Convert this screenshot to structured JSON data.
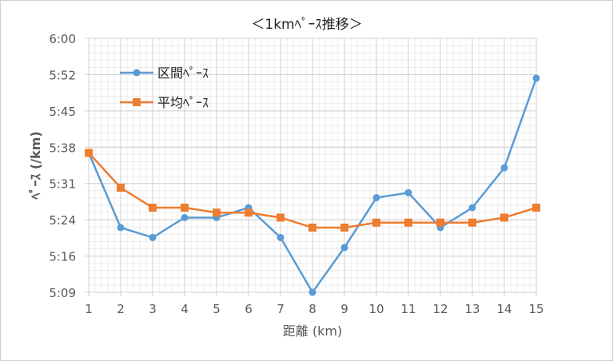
{
  "chart_data": {
    "type": "line",
    "title": "＜1kmﾍﾟｰｽ推移＞",
    "xlabel": "距離 (km)",
    "ylabel": "ﾍﾟｰｽ (/km)",
    "x": [
      1,
      2,
      3,
      4,
      5,
      6,
      7,
      8,
      9,
      10,
      11,
      12,
      13,
      14,
      15
    ],
    "ylim": [
      "5:09",
      "6:00"
    ],
    "yticks": [
      "5:09",
      "5:16",
      "5:24",
      "5:31",
      "5:38",
      "5:45",
      "5:52",
      "6:00"
    ],
    "grid": true,
    "legend_position": "top-left",
    "series": [
      {
        "name": "区間ﾍﾟｰｽ",
        "color": "#5B9BD5",
        "marker": "circle",
        "values": [
          "5:37",
          "5:22",
          "5:20",
          "5:24",
          "5:24",
          "5:26",
          "5:20",
          "5:09",
          "5:18",
          "5:28",
          "5:29",
          "5:22",
          "5:26",
          "5:34",
          "5:52"
        ]
      },
      {
        "name": "平均ﾍﾟｰｽ",
        "color": "#ED7D31",
        "marker": "square",
        "values": [
          "5:37",
          "5:30",
          "5:26",
          "5:26",
          "5:25",
          "5:25",
          "5:24",
          "5:22",
          "5:22",
          "5:23",
          "5:23",
          "5:23",
          "5:23",
          "5:24",
          "5:26"
        ]
      }
    ]
  }
}
